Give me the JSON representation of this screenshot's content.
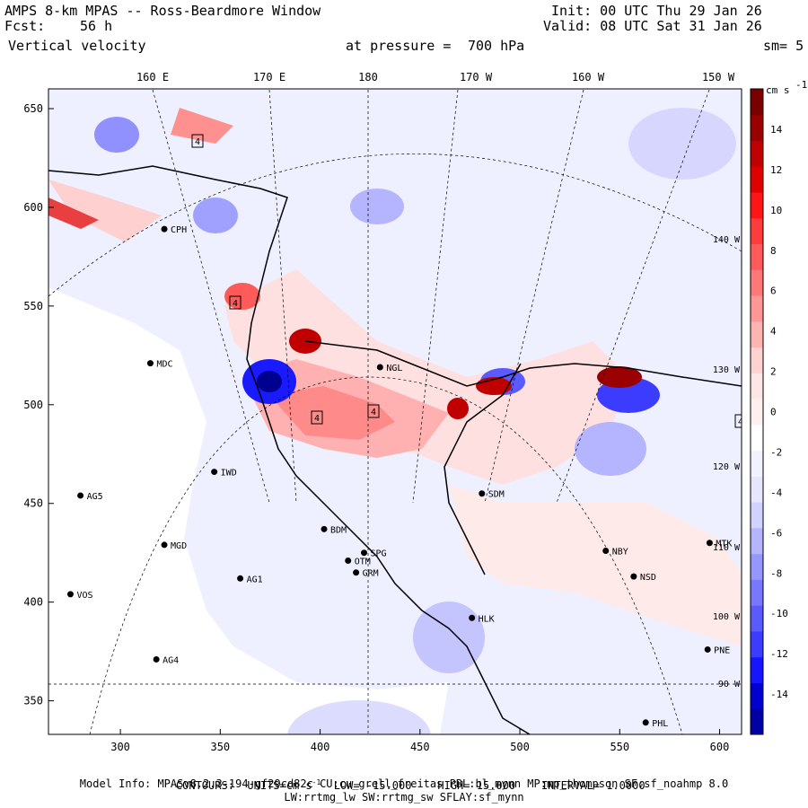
{
  "header": {
    "model_title": "AMPS 8-km MPAS -- Ross-Beardmore Window",
    "init_line": "Init: 00 UTC Thu 29 Jan 26",
    "fcst_label": "Fcst:",
    "fcst_value": "56 h",
    "valid_line": "Valid: 08 UTC Sat 31 Jan 26",
    "field": "Vertical velocity",
    "pressure_prefix": "at pressure =",
    "pressure_value": "700 hPa",
    "smoothing": "sm= 5"
  },
  "axes": {
    "x_ticks": [
      300,
      350,
      400,
      450,
      500,
      550,
      600
    ],
    "y_ticks": [
      650,
      600,
      550,
      500,
      450,
      400,
      350
    ],
    "x_range": [
      264,
      611
    ],
    "y_range": [
      333,
      660
    ],
    "top_lon_labels": [
      "160 E",
      "170 E",
      "180",
      "170 W",
      "160 W",
      "150 W"
    ],
    "right_lon_labels": [
      "140 W",
      "130 W",
      "120 W",
      "110 W",
      "100 W",
      "90 W"
    ]
  },
  "stations": [
    {
      "id": "MDC",
      "x": 315,
      "y": 521
    },
    {
      "id": "NGL",
      "x": 430,
      "y": 519
    },
    {
      "id": "CPH",
      "x": 322,
      "y": 589
    },
    {
      "id": "IWD",
      "x": 347,
      "y": 466
    },
    {
      "id": "AG5",
      "x": 280,
      "y": 454
    },
    {
      "id": "MGD",
      "x": 322,
      "y": 429
    },
    {
      "id": "BDM",
      "x": 402,
      "y": 437
    },
    {
      "id": "SDM",
      "x": 481,
      "y": 455
    },
    {
      "id": "SPG",
      "x": 422,
      "y": 425
    },
    {
      "id": "OTM",
      "x": 414,
      "y": 421
    },
    {
      "id": "GRM",
      "x": 418,
      "y": 415
    },
    {
      "id": "AG1",
      "x": 360,
      "y": 412
    },
    {
      "id": "VOS",
      "x": 275,
      "y": 404
    },
    {
      "id": "NBY",
      "x": 543,
      "y": 426
    },
    {
      "id": "MTK",
      "x": 595,
      "y": 430
    },
    {
      "id": "NSD",
      "x": 557,
      "y": 413
    },
    {
      "id": "HLK",
      "x": 476,
      "y": 392
    },
    {
      "id": "AG4",
      "x": 318,
      "y": 371
    },
    {
      "id": "PNE",
      "x": 594,
      "y": 376
    },
    {
      "id": "PHL",
      "x": 563,
      "y": 339
    }
  ],
  "colorbar": {
    "units": "cm s",
    "units_exp": "-1",
    "ticks": [
      14,
      12,
      10,
      8,
      6,
      4,
      2,
      0,
      -2,
      -4,
      -6,
      -8,
      -10,
      -12,
      -14
    ],
    "colors": [
      "#0000a5",
      "#0000d0",
      "#1515ff",
      "#3c3cff",
      "#5a5aff",
      "#7878ff",
      "#9696ff",
      "#b4b4ff",
      "#d2d2ff",
      "#e6e6ff",
      "#f2f2ff",
      "#ffffff",
      "#fff0f0",
      "#ffe6e6",
      "#ffd2d2",
      "#ffb4b4",
      "#ff9696",
      "#ff7878",
      "#ff5a5a",
      "#ff3c3c",
      "#ff1515",
      "#e00000",
      "#c00000",
      "#9a0000",
      "#7a0000"
    ]
  },
  "contours": {
    "label": "CONTOURS:",
    "units_label": "UNITS=cm s",
    "units_exp": "-1",
    "low": "LOW= -15.000",
    "high": "HIGH= 15.000",
    "interval": "INTERVAL= 1.0000"
  },
  "model_info": "Model Info: MPASv8.2.3-194-gf29cd82c CU:cu_grell_freitas PBL:bl_mynn MP:mp_thompson SF:sf_noahmp 8.0",
  "model_info2": "LW:rrtmg_lw SW:rrtmg_sw SFLAY:sf_mynn",
  "max_labels": [
    "4",
    "4",
    "4",
    "4",
    "4"
  ]
}
